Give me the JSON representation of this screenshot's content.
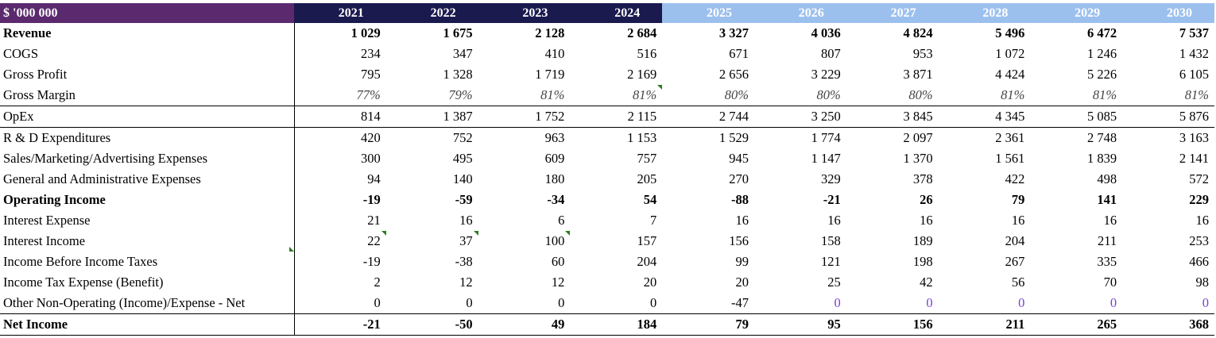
{
  "header": {
    "unit_label": "$ '000 000",
    "years": [
      "2021",
      "2022",
      "2023",
      "2024",
      "2025",
      "2026",
      "2027",
      "2028",
      "2029",
      "2030"
    ]
  },
  "colors": {
    "label_header": "#5b2a6e",
    "historical_header": "#1b1a4f",
    "projected_header": "#9cc0ee",
    "zero_projection": "#7c3fd6"
  },
  "rows": [
    {
      "label": "Revenue",
      "values": [
        "1 029",
        "1 675",
        "2 128",
        "2 684",
        "3 327",
        "4 036",
        "4 824",
        "5 496",
        "6 472",
        "7 537"
      ]
    },
    {
      "label": "COGS",
      "values": [
        "234",
        "347",
        "410",
        "516",
        "671",
        "807",
        "953",
        "1 072",
        "1 246",
        "1 432"
      ]
    },
    {
      "label": "Gross Profit",
      "values": [
        "795",
        "1 328",
        "1 719",
        "2 169",
        "2 656",
        "3 229",
        "3 871",
        "4 424",
        "5 226",
        "6 105"
      ]
    },
    {
      "label": "Gross Margin",
      "values": [
        "77%",
        "79%",
        "81%",
        "81%",
        "80%",
        "80%",
        "80%",
        "81%",
        "81%",
        "81%"
      ]
    },
    {
      "label": "OpEx",
      "values": [
        "814",
        "1 387",
        "1 752",
        "2 115",
        "2 744",
        "3 250",
        "3 845",
        "4 345",
        "5 085",
        "5 876"
      ]
    },
    {
      "label": "R & D Expenditures",
      "values": [
        "420",
        "752",
        "963",
        "1 153",
        "1 529",
        "1 774",
        "2 097",
        "2 361",
        "2 748",
        "3 163"
      ]
    },
    {
      "label": "Sales/Marketing/Advertising Expenses",
      "values": [
        "300",
        "495",
        "609",
        "757",
        "945",
        "1 147",
        "1 370",
        "1 561",
        "1 839",
        "2 141"
      ]
    },
    {
      "label": "General and Administrative Expenses",
      "values": [
        "94",
        "140",
        "180",
        "205",
        "270",
        "329",
        "378",
        "422",
        "498",
        "572"
      ]
    },
    {
      "label": "Operating Income",
      "values": [
        "-19",
        "-59",
        "-34",
        "54",
        "-88",
        "-21",
        "26",
        "79",
        "141",
        "229"
      ]
    },
    {
      "label": "Interest Expense",
      "values": [
        "21",
        "16",
        "6",
        "7",
        "16",
        "16",
        "16",
        "16",
        "16",
        "16"
      ]
    },
    {
      "label": "Interest Income",
      "values": [
        "22",
        "37",
        "100",
        "157",
        "156",
        "158",
        "189",
        "204",
        "211",
        "253"
      ]
    },
    {
      "label": "Income Before Income Taxes",
      "values": [
        "-19",
        "-38",
        "60",
        "204",
        "99",
        "121",
        "198",
        "267",
        "335",
        "466"
      ]
    },
    {
      "label": "Income Tax Expense (Benefit)",
      "values": [
        "2",
        "12",
        "12",
        "20",
        "20",
        "25",
        "42",
        "56",
        "70",
        "98"
      ]
    },
    {
      "label": "Other Non-Operating (Income)/Expense - Net",
      "values": [
        "0",
        "0",
        "0",
        "0",
        "-47",
        "0",
        "0",
        "0",
        "0",
        "0"
      ]
    },
    {
      "label": "Net Income",
      "values": [
        "-21",
        "-50",
        "49",
        "184",
        "79",
        "95",
        "156",
        "211",
        "265",
        "368"
      ]
    }
  ]
}
